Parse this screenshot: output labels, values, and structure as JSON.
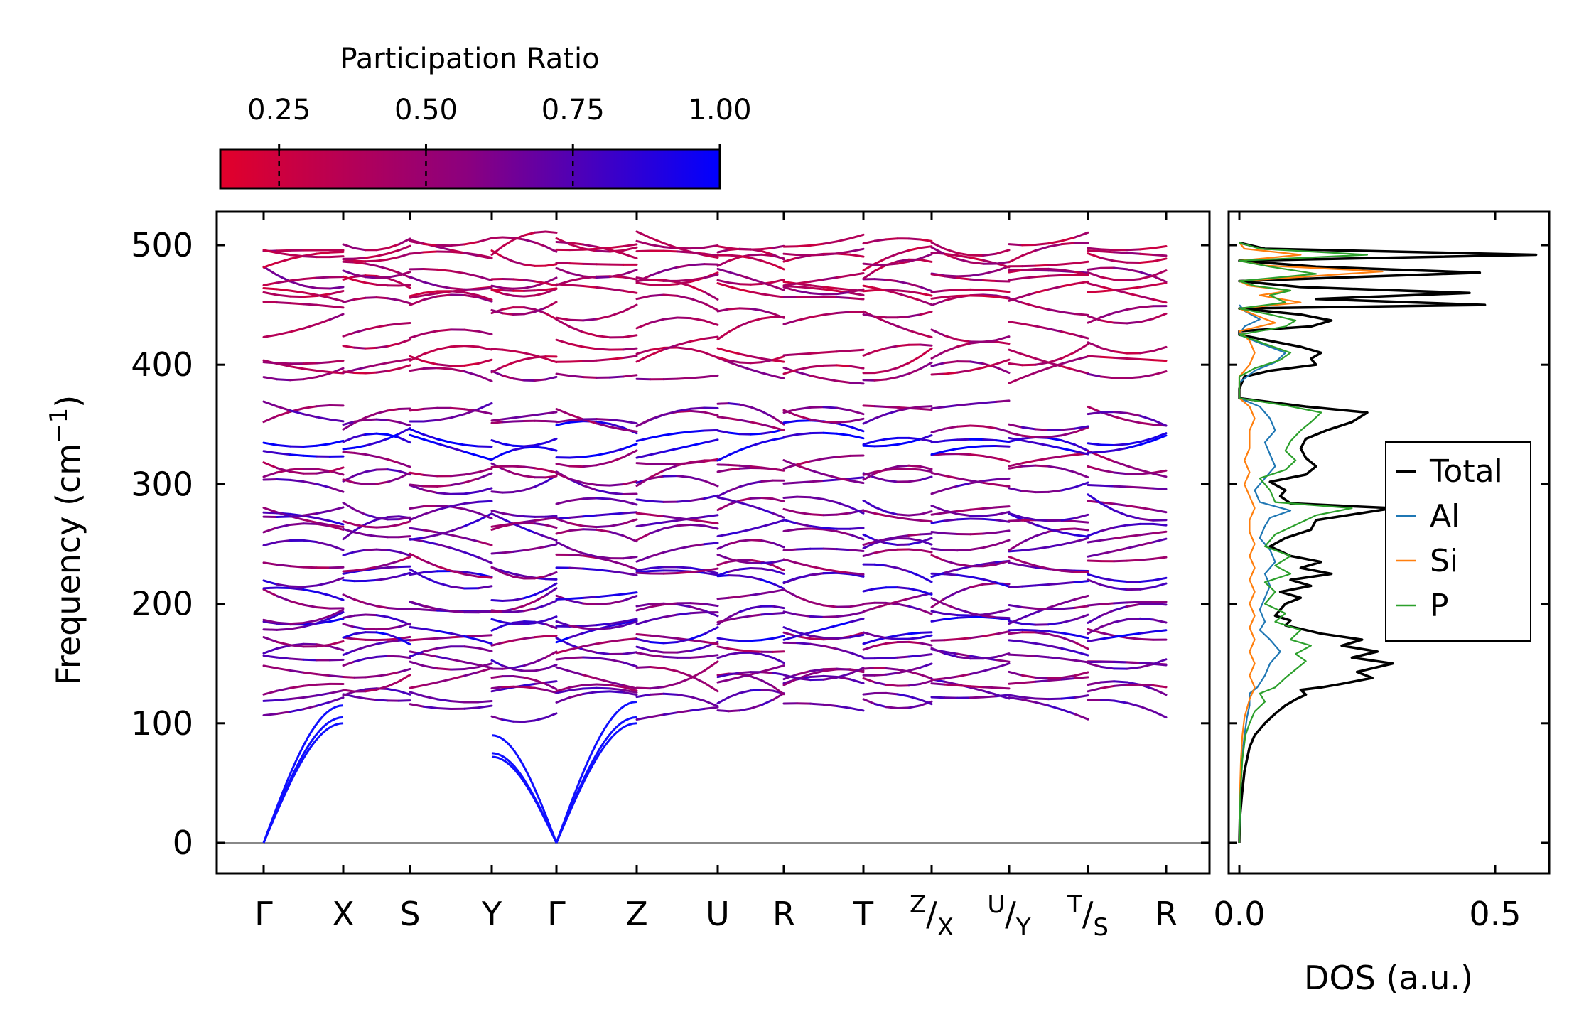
{
  "chart_data": [
    {
      "type": "line",
      "title": "",
      "ylabel": "Frequency (cm⁻¹)",
      "ylabel_parts": {
        "main": "Frequency (cm",
        "sup": "−1",
        "close": ")"
      },
      "ylim": [
        -25,
        525
      ],
      "yticks": [
        0,
        100,
        200,
        300,
        400,
        500
      ],
      "ytick_labels": [
        "0",
        "100",
        "200",
        "300",
        "400",
        "500"
      ],
      "path_labels": [
        {
          "label": "Γ"
        },
        {
          "label": "X"
        },
        {
          "label": "S"
        },
        {
          "label": "Y"
        },
        {
          "label": "Γ"
        },
        {
          "label": "Z"
        },
        {
          "label": "U"
        },
        {
          "label": "R"
        },
        {
          "label": "T"
        },
        {
          "label": "X",
          "pre": "Z"
        },
        {
          "label": "Y",
          "pre": "U"
        },
        {
          "label": "S",
          "pre": "T"
        },
        {
          "label": "R"
        }
      ],
      "colorbar": {
        "title": "Participation Ratio",
        "ticks": [
          "0.25",
          "0.50",
          "0.75",
          "1.00"
        ],
        "range": [
          0.15,
          1.0
        ],
        "color_low": "#e2002a",
        "color_mid": "#8a0080",
        "color_high": "#0000ff"
      },
      "acoustic_branches": "three acoustic modes start at 0 cm⁻¹ at both Γ points and rise to ~70–120 cm⁻¹",
      "branch_count_approx": 48,
      "freq_range_cm": [
        0,
        502
      ]
    },
    {
      "type": "line",
      "title": "",
      "xlabel": "DOS (a.u.)",
      "xlim": [
        -0.01,
        0.6
      ],
      "xticks": [
        0.0,
        0.5
      ],
      "xtick_labels": [
        "0.0",
        "0.5"
      ],
      "ylim": [
        -25,
        525
      ],
      "legend_position": "center-right",
      "series": [
        {
          "name": "Total",
          "color": "#000000",
          "points": [
            [
              0,
              0
            ],
            [
              0.001,
              20
            ],
            [
              0.005,
              40
            ],
            [
              0.01,
              60
            ],
            [
              0.015,
              70
            ],
            [
              0.02,
              80
            ],
            [
              0.03,
              90
            ],
            [
              0.05,
              100
            ],
            [
              0.07,
              108
            ],
            [
              0.09,
              115
            ],
            [
              0.11,
              120
            ],
            [
              0.13,
              124
            ],
            [
              0.12,
              128
            ],
            [
              0.16,
              130
            ],
            [
              0.2,
              133
            ],
            [
              0.26,
              138
            ],
            [
              0.23,
              143
            ],
            [
              0.3,
              150
            ],
            [
              0.22,
              155
            ],
            [
              0.27,
              160
            ],
            [
              0.2,
              165
            ],
            [
              0.24,
              170
            ],
            [
              0.16,
              175
            ],
            [
              0.13,
              178
            ],
            [
              0.09,
              182
            ],
            [
              0.1,
              186
            ],
            [
              0.07,
              190
            ],
            [
              0.08,
              195
            ],
            [
              0.09,
              200
            ],
            [
              0.12,
              205
            ],
            [
              0.08,
              210
            ],
            [
              0.14,
              215
            ],
            [
              0.1,
              220
            ],
            [
              0.18,
              225
            ],
            [
              0.12,
              230
            ],
            [
              0.16,
              235
            ],
            [
              0.1,
              240
            ],
            [
              0.06,
              248
            ],
            [
              0.09,
              255
            ],
            [
              0.14,
              262
            ],
            [
              0.15,
              270
            ],
            [
              0.24,
              276
            ],
            [
              0.3,
              280
            ],
            [
              0.1,
              284
            ],
            [
              0.08,
              290
            ],
            [
              0.09,
              295
            ],
            [
              0.06,
              302
            ],
            [
              0.13,
              308
            ],
            [
              0.15,
              315
            ],
            [
              0.13,
              322
            ],
            [
              0.12,
              330
            ],
            [
              0.13,
              338
            ],
            [
              0.17,
              345
            ],
            [
              0.22,
              352
            ],
            [
              0.25,
              360
            ],
            [
              0.13,
              365
            ],
            [
              0.0,
              372
            ],
            [
              0.0,
              375
            ],
            [
              0.0,
              380
            ],
            [
              0.01,
              390
            ],
            [
              0.06,
              395
            ],
            [
              0.15,
              400
            ],
            [
              0.14,
              405
            ],
            [
              0.16,
              410
            ],
            [
              0.12,
              415
            ],
            [
              0.06,
              420
            ],
            [
              0.0,
              425
            ],
            [
              0.0,
              428
            ],
            [
              0.14,
              432
            ],
            [
              0.18,
              437
            ],
            [
              0.12,
              442
            ],
            [
              0.0,
              447
            ],
            [
              0.48,
              450
            ],
            [
              0.15,
              455
            ],
            [
              0.45,
              460
            ],
            [
              0.12,
              465
            ],
            [
              0.0,
              470
            ],
            [
              0.47,
              477
            ],
            [
              0.15,
              482
            ],
            [
              0.0,
              487
            ],
            [
              0.58,
              492
            ],
            [
              0.05,
              497
            ],
            [
              0.0,
              502
            ]
          ]
        },
        {
          "name": "Al",
          "color": "#1f77b4",
          "points": [
            [
              0,
              0
            ],
            [
              0.002,
              40
            ],
            [
              0.005,
              70
            ],
            [
              0.01,
              90
            ],
            [
              0.015,
              105
            ],
            [
              0.02,
              115
            ],
            [
              0.02,
              125
            ],
            [
              0.035,
              130
            ],
            [
              0.05,
              140
            ],
            [
              0.06,
              150
            ],
            [
              0.08,
              160
            ],
            [
              0.06,
              170
            ],
            [
              0.04,
              178
            ],
            [
              0.05,
              185
            ],
            [
              0.04,
              195
            ],
            [
              0.05,
              205
            ],
            [
              0.06,
              215
            ],
            [
              0.05,
              225
            ],
            [
              0.07,
              235
            ],
            [
              0.06,
              245
            ],
            [
              0.04,
              255
            ],
            [
              0.05,
              265
            ],
            [
              0.06,
              272
            ],
            [
              0.1,
              278
            ],
            [
              0.04,
              285
            ],
            [
              0.03,
              295
            ],
            [
              0.05,
              305
            ],
            [
              0.07,
              315
            ],
            [
              0.06,
              325
            ],
            [
              0.05,
              335
            ],
            [
              0.07,
              345
            ],
            [
              0.06,
              355
            ],
            [
              0.04,
              365
            ],
            [
              0.0,
              372
            ],
            [
              0.0,
              385
            ],
            [
              0.03,
              395
            ],
            [
              0.07,
              402
            ],
            [
              0.09,
              410
            ],
            [
              0.04,
              418
            ],
            [
              0.0,
              425
            ],
            [
              0.01,
              432
            ],
            [
              0.04,
              438
            ],
            [
              0.01,
              445
            ],
            [
              0.0,
              450
            ]
          ]
        },
        {
          "name": "Si",
          "color": "#ff7f0e",
          "points": [
            [
              0,
              0
            ],
            [
              0.001,
              40
            ],
            [
              0.003,
              70
            ],
            [
              0.006,
              90
            ],
            [
              0.01,
              105
            ],
            [
              0.02,
              120
            ],
            [
              0.03,
              130
            ],
            [
              0.02,
              140
            ],
            [
              0.03,
              150
            ],
            [
              0.02,
              160
            ],
            [
              0.03,
              170
            ],
            [
              0.02,
              180
            ],
            [
              0.03,
              190
            ],
            [
              0.02,
              200
            ],
            [
              0.03,
              210
            ],
            [
              0.02,
              220
            ],
            [
              0.03,
              230
            ],
            [
              0.02,
              240
            ],
            [
              0.03,
              250
            ],
            [
              0.02,
              260
            ],
            [
              0.02,
              270
            ],
            [
              0.03,
              280
            ],
            [
              0.02,
              290
            ],
            [
              0.01,
              300
            ],
            [
              0.02,
              310
            ],
            [
              0.01,
              320
            ],
            [
              0.02,
              330
            ],
            [
              0.02,
              345
            ],
            [
              0.03,
              355
            ],
            [
              0.02,
              365
            ],
            [
              0.0,
              372
            ],
            [
              0.0,
              390
            ],
            [
              0.02,
              400
            ],
            [
              0.03,
              410
            ],
            [
              0.02,
              420
            ],
            [
              0.0,
              428
            ],
            [
              0.07,
              435
            ],
            [
              0.04,
              440
            ],
            [
              0.0,
              447
            ],
            [
              0.12,
              452
            ],
            [
              0.04,
              458
            ],
            [
              0.1,
              462
            ],
            [
              0.02,
              466
            ],
            [
              0.0,
              470
            ],
            [
              0.28,
              478
            ],
            [
              0.05,
              483
            ],
            [
              0.0,
              487
            ],
            [
              0.12,
              492
            ],
            [
              0.01,
              497
            ],
            [
              0.0,
              502
            ]
          ]
        },
        {
          "name": "P",
          "color": "#2ca02c",
          "points": [
            [
              0,
              0
            ],
            [
              0.002,
              40
            ],
            [
              0.006,
              70
            ],
            [
              0.012,
              90
            ],
            [
              0.02,
              100
            ],
            [
              0.03,
              110
            ],
            [
              0.05,
              118
            ],
            [
              0.04,
              125
            ],
            [
              0.07,
              130
            ],
            [
              0.09,
              138
            ],
            [
              0.11,
              145
            ],
            [
              0.13,
              152
            ],
            [
              0.11,
              158
            ],
            [
              0.14,
              165
            ],
            [
              0.1,
              170
            ],
            [
              0.12,
              178
            ],
            [
              0.07,
              185
            ],
            [
              0.09,
              192
            ],
            [
              0.05,
              200
            ],
            [
              0.07,
              210
            ],
            [
              0.05,
              218
            ],
            [
              0.1,
              225
            ],
            [
              0.07,
              232
            ],
            [
              0.1,
              240
            ],
            [
              0.05,
              248
            ],
            [
              0.07,
              258
            ],
            [
              0.11,
              266
            ],
            [
              0.15,
              274
            ],
            [
              0.22,
              280
            ],
            [
              0.07,
              285
            ],
            [
              0.06,
              295
            ],
            [
              0.04,
              305
            ],
            [
              0.09,
              312
            ],
            [
              0.11,
              320
            ],
            [
              0.09,
              328
            ],
            [
              0.1,
              336
            ],
            [
              0.12,
              345
            ],
            [
              0.14,
              352
            ],
            [
              0.16,
              360
            ],
            [
              0.09,
              366
            ],
            [
              0.0,
              372
            ],
            [
              0.0,
              390
            ],
            [
              0.03,
              397
            ],
            [
              0.08,
              404
            ],
            [
              0.1,
              410
            ],
            [
              0.06,
              416
            ],
            [
              0.0,
              425
            ],
            [
              0.09,
              432
            ],
            [
              0.11,
              437
            ],
            [
              0.06,
              442
            ],
            [
              0.0,
              447
            ],
            [
              0.09,
              452
            ],
            [
              0.06,
              458
            ],
            [
              0.1,
              462
            ],
            [
              0.03,
              466
            ],
            [
              0.0,
              470
            ],
            [
              0.15,
              476
            ],
            [
              0.06,
              482
            ],
            [
              0.0,
              487
            ],
            [
              0.25,
              492
            ],
            [
              0.04,
              497
            ],
            [
              0.0,
              502
            ]
          ]
        }
      ]
    }
  ]
}
